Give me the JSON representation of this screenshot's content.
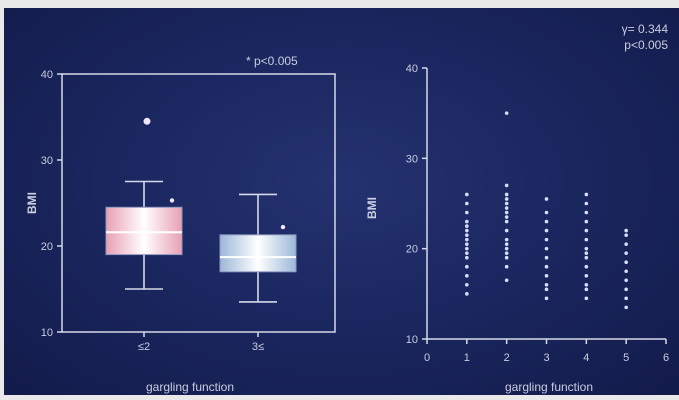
{
  "chart_data": [
    {
      "type": "box",
      "annotation": "* p<0.005",
      "ylabel": "BMI",
      "xlabel": "gargling function",
      "ylim": [
        10,
        40
      ],
      "yticks": [
        10,
        20,
        30,
        40
      ],
      "categories": [
        "≤2",
        "3≤"
      ],
      "boxes": [
        {
          "category": "≤2",
          "whisker_low": 15,
          "q1": 19,
          "median": 21.6,
          "q3": 24.5,
          "whisker_high": 27.5,
          "outliers": [
            34.5,
            25.3
          ]
        },
        {
          "category": "3≤",
          "whisker_low": 13.5,
          "q1": 17,
          "median": 18.7,
          "q3": 21.3,
          "whisker_high": 26,
          "outliers": [
            22.2
          ]
        }
      ],
      "colors": {
        "box1": "#e8a0b4",
        "box2": "#9cb8d8"
      }
    },
    {
      "type": "scatter",
      "annotation_lines": [
        "γ= 0.344",
        "p<0.005"
      ],
      "ylabel": "BMI",
      "xlabel": "gargling function",
      "xlim": [
        0,
        6
      ],
      "ylim": [
        10,
        40
      ],
      "xticks": [
        0,
        1,
        2,
        3,
        4,
        5,
        6
      ],
      "yticks": [
        10,
        20,
        30,
        40
      ],
      "columns": [
        {
          "x": 1,
          "y": [
            15,
            16,
            17,
            18,
            19,
            19.5,
            20,
            20.5,
            21,
            21.5,
            22,
            22.5,
            23,
            24,
            25,
            26
          ]
        },
        {
          "x": 2,
          "y": [
            16.5,
            18,
            19,
            19.5,
            20,
            20.5,
            21,
            22,
            23,
            23.5,
            24,
            24.5,
            25,
            25.5,
            26,
            27,
            35
          ]
        },
        {
          "x": 3,
          "y": [
            14.5,
            15.5,
            16,
            17,
            18,
            19,
            20,
            21,
            22,
            23,
            24,
            25.5
          ]
        },
        {
          "x": 4,
          "y": [
            14.5,
            15.5,
            16,
            17,
            18,
            19,
            19.5,
            20,
            21,
            22,
            23,
            24,
            25,
            26
          ]
        },
        {
          "x": 5,
          "y": [
            13.5,
            14.5,
            15.5,
            16.5,
            17.5,
            18.5,
            19.5,
            20.5,
            21.5,
            22
          ]
        }
      ]
    }
  ],
  "colors": {
    "axis": "#d6d9e8",
    "text": "#c9cde0",
    "dot": "#d8dcff"
  }
}
